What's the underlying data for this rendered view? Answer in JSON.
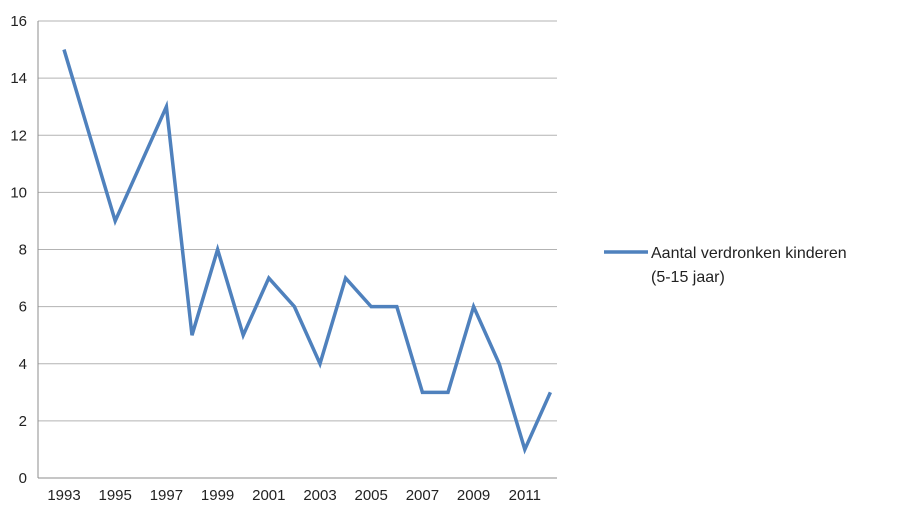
{
  "chart_data": {
    "type": "line",
    "title": "",
    "xlabel": "",
    "ylabel": "",
    "x": [
      1993,
      1994,
      1995,
      1996,
      1997,
      1998,
      1999,
      2000,
      2001,
      2002,
      2003,
      2004,
      2005,
      2006,
      2007,
      2008,
      2009,
      2010,
      2011,
      2012
    ],
    "x_tick_labels": [
      "1993",
      "1995",
      "1997",
      "1999",
      "2001",
      "2003",
      "2005",
      "2007",
      "2009",
      "2011"
    ],
    "y_tick_labels": [
      "0",
      "2",
      "4",
      "6",
      "8",
      "10",
      "12",
      "14",
      "16"
    ],
    "ylim": [
      0,
      16
    ],
    "grid": true,
    "legend_position": "right",
    "series": [
      {
        "name": "Aantal verdronken kinderen (5-15 jaar)",
        "legend_lines": [
          "Aantal verdronken kinderen",
          "(5-15 jaar)"
        ],
        "color": "#4f81bd",
        "values": [
          15,
          12,
          9,
          11,
          13,
          5,
          8,
          5,
          7,
          6,
          4,
          7,
          6,
          6,
          3,
          3,
          6,
          4,
          1,
          3
        ]
      }
    ]
  }
}
